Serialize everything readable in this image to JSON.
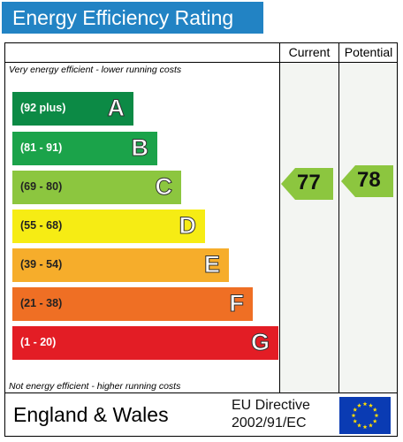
{
  "title": "Energy Efficiency Rating",
  "columns": {
    "current": "Current",
    "potential": "Potential"
  },
  "notes": {
    "top": "Very energy efficient - lower running costs",
    "bottom": "Not energy efficient - higher running costs"
  },
  "bands": [
    {
      "letter": "A",
      "range": "(92 plus)",
      "color": "#0c8a45"
    },
    {
      "letter": "B",
      "range": "(81 - 91)",
      "color": "#1ba34a"
    },
    {
      "letter": "C",
      "range": "(69 - 80)",
      "color": "#8cc63f"
    },
    {
      "letter": "D",
      "range": "(55 - 68)",
      "color": "#f6ec14"
    },
    {
      "letter": "E",
      "range": "(39 - 54)",
      "color": "#f6ad2b"
    },
    {
      "letter": "F",
      "range": "(21 - 38)",
      "color": "#ef6f24"
    },
    {
      "letter": "G",
      "range": "(1 - 20)",
      "color": "#e31d25"
    }
  ],
  "ratings": {
    "current": {
      "value": "77",
      "band": "C",
      "color": "#8cc63f"
    },
    "potential": {
      "value": "78",
      "band": "C",
      "color": "#8cc63f"
    }
  },
  "footer": {
    "country": "England & Wales",
    "directive_line1": "EU Directive",
    "directive_line2": "2002/91/EC",
    "flag_icon": "eu-flag-icon"
  }
}
